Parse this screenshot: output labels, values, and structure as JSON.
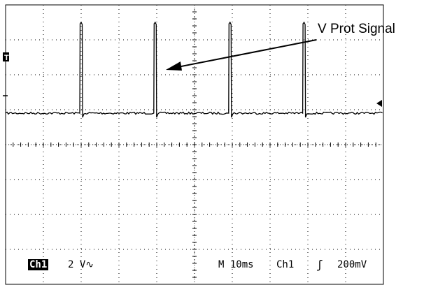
{
  "annotation": {
    "text": "V Prot Signal"
  },
  "status_bar": {
    "channel": "Ch1",
    "volts_per_div": "2 V",
    "coupling_symbol": "∿",
    "timebase": "M 10ms",
    "trigger_source": "Ch1",
    "trigger_slope_symbol": "ʃ",
    "trigger_level": "200mV"
  },
  "markers": {
    "trigger_marker": "T",
    "ground_marker": "arrow-left-icon"
  },
  "chart_data": {
    "type": "line",
    "grid": true,
    "divisions": {
      "x": 10,
      "y": 8
    },
    "xlim": [
      0,
      100
    ],
    "ylim": [
      -10,
      6
    ],
    "x_unit": "ms",
    "y_unit": "V",
    "baseline": -0.2,
    "pulses": [
      {
        "x": 20.0,
        "peak": 5.0
      },
      {
        "x": 39.6,
        "peak": 5.0
      },
      {
        "x": 59.4,
        "peak": 5.0
      },
      {
        "x": 79.0,
        "peak": 5.0
      }
    ]
  }
}
